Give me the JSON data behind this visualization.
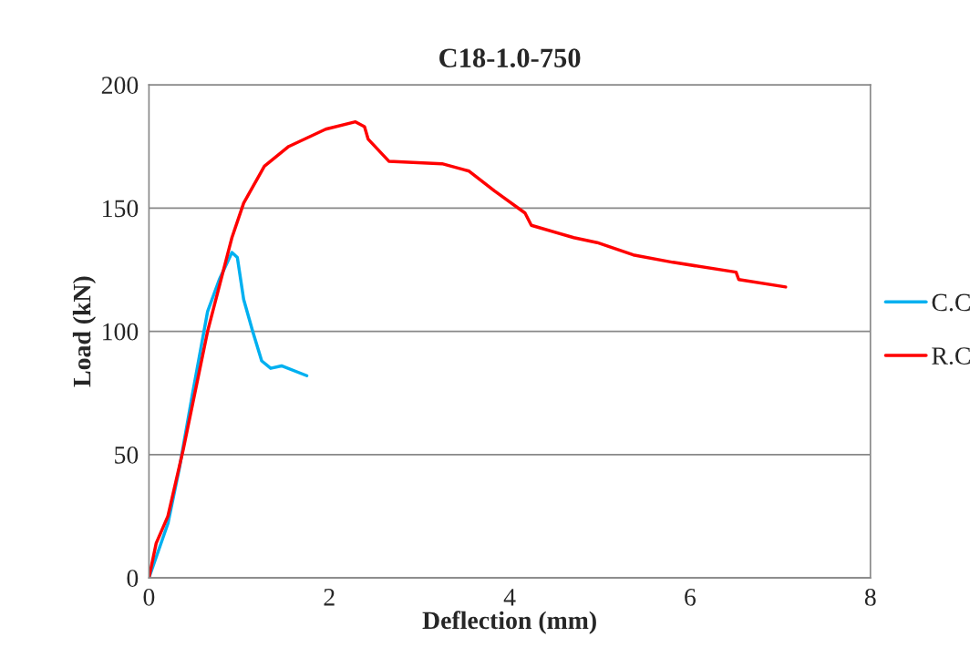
{
  "chart_data": {
    "type": "line",
    "title": "C18-1.0-750",
    "xlabel": "Deflection (mm)",
    "ylabel": "Load (kN)",
    "xlim": [
      0,
      8
    ],
    "xticks": [
      0,
      2,
      4,
      6,
      8
    ],
    "ylim": [
      0,
      200
    ],
    "yticks": [
      0,
      50,
      100,
      150,
      200
    ],
    "grid": "y",
    "legend": "right",
    "marker": "none",
    "line_style": "solid",
    "series": [
      {
        "name": "C.C",
        "color": "#00b0f0",
        "x": [
          0,
          0.21,
          0.34,
          0.48,
          0.65,
          0.78,
          0.92,
          0.98,
          1.05,
          1.15,
          1.25,
          1.35,
          1.47,
          1.75
        ],
        "values": [
          0,
          22,
          45,
          74,
          108,
          121,
          132,
          130,
          113,
          100,
          88,
          85,
          86,
          82
        ]
      },
      {
        "name": "R.C",
        "color": "#ff0000",
        "x": [
          0,
          0.08,
          0.21,
          0.38,
          0.65,
          0.92,
          1.05,
          1.28,
          1.55,
          1.96,
          2.29,
          2.39,
          2.43,
          2.66,
          3.25,
          3.55,
          3.83,
          4.17,
          4.24,
          4.71,
          4.97,
          5.37,
          5.81,
          6.51,
          6.54,
          7.06
        ],
        "values": [
          0,
          14,
          25,
          52,
          100,
          138,
          152,
          167,
          175,
          182,
          185,
          183,
          178,
          169,
          168,
          165,
          157,
          148,
          143,
          138,
          136,
          131,
          128,
          124,
          121,
          118
        ]
      }
    ]
  }
}
